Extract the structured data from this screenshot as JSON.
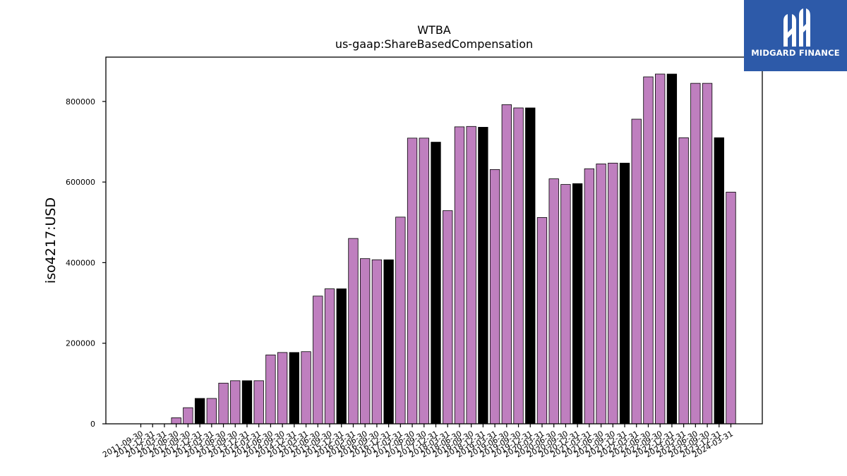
{
  "chart_data": {
    "type": "bar",
    "title": "WTBA",
    "subtitle": "us-gaap:ShareBasedCompensation",
    "ylabel": "iso4217:USD",
    "xlabel": "",
    "ylim": [
      0,
      910000
    ],
    "yticks": [
      0,
      200000,
      400000,
      600000,
      800000
    ],
    "ytick_labels": [
      "0",
      "200000",
      "400000",
      "600000",
      "800000"
    ],
    "grid": false,
    "legend": "none",
    "colors": {
      "primary": "#bf7fbf",
      "highlight": "#000000",
      "edge": "#000000"
    },
    "categories": [
      "2011-09-30",
      "2011-12-31",
      "2012-03-31",
      "2012-06-30",
      "2012-09-30",
      "2012-12-31",
      "2013-03-31",
      "2013-06-30",
      "2013-09-30",
      "2013-12-31",
      "2014-03-31",
      "2014-06-30",
      "2014-09-30",
      "2014-12-31",
      "2015-03-31",
      "2015-06-30",
      "2015-09-30",
      "2015-12-31",
      "2016-03-31",
      "2016-06-30",
      "2016-09-30",
      "2016-12-31",
      "2017-03-31",
      "2017-06-30",
      "2017-09-30",
      "2017-12-31",
      "2018-03-31",
      "2018-06-30",
      "2018-09-30",
      "2018-12-31",
      "2019-03-31",
      "2019-06-30",
      "2019-09-30",
      "2019-12-31",
      "2020-03-31",
      "2020-06-30",
      "2020-09-30",
      "2020-12-31",
      "2021-03-31",
      "2021-06-30",
      "2021-09-30",
      "2021-12-31",
      "2022-03-31",
      "2022-06-30",
      "2022-09-30",
      "2022-12-31",
      "2023-03-31",
      "2023-06-30",
      "2023-09-30",
      "2023-12-31",
      "2024-03-31"
    ],
    "values": [
      0,
      0,
      0,
      15000,
      40000,
      63000,
      63000,
      101000,
      107000,
      107000,
      107000,
      171000,
      177000,
      177000,
      179000,
      317000,
      335000,
      335000,
      460000,
      410000,
      407000,
      407000,
      513000,
      709000,
      709000,
      699000,
      529000,
      737000,
      738000,
      736000,
      631000,
      792000,
      784000,
      784000,
      512000,
      608000,
      594000,
      596000,
      633000,
      645000,
      647000,
      647000,
      756000,
      861000,
      868000,
      868000,
      710000,
      845000,
      845000,
      710000,
      575000
    ],
    "highlight_flags": [
      0,
      0,
      0,
      0,
      0,
      1,
      0,
      0,
      0,
      1,
      0,
      0,
      0,
      1,
      0,
      0,
      0,
      1,
      0,
      0,
      0,
      1,
      0,
      0,
      0,
      1,
      0,
      0,
      0,
      1,
      0,
      0,
      0,
      1,
      0,
      0,
      0,
      1,
      0,
      0,
      0,
      1,
      0,
      0,
      0,
      1,
      0,
      0,
      0,
      1,
      0
    ]
  },
  "logo": {
    "text": "MIDGARD FINANCE"
  }
}
